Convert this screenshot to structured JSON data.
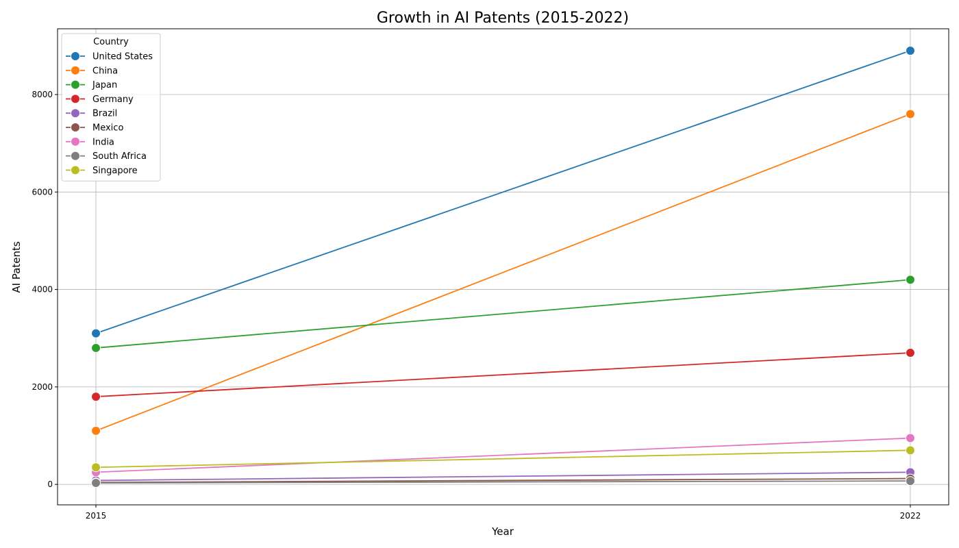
{
  "chart_data": {
    "type": "line",
    "title": "Growth in AI Patents (2015-2022)",
    "xlabel": "Year",
    "ylabel": "AI Patents",
    "x": [
      "2015",
      "2022"
    ],
    "xlim": [
      2014.67,
      2022.33
    ],
    "ylim": [
      -420,
      9350
    ],
    "yticks": [
      0,
      2000,
      4000,
      6000,
      8000
    ],
    "grid": true,
    "legend": {
      "title": "Country",
      "position": "top-left"
    },
    "series": [
      {
        "name": "United States",
        "color": "#1f77b4",
        "values": [
          3100,
          8900
        ]
      },
      {
        "name": "China",
        "color": "#ff7f0e",
        "values": [
          1100,
          7600
        ]
      },
      {
        "name": "Japan",
        "color": "#2ca02c",
        "values": [
          2800,
          4200
        ]
      },
      {
        "name": "Germany",
        "color": "#d62728",
        "values": [
          1800,
          2700
        ]
      },
      {
        "name": "Brazil",
        "color": "#9467bd",
        "values": [
          80,
          250
        ]
      },
      {
        "name": "Mexico",
        "color": "#8c564b",
        "values": [
          40,
          120
        ]
      },
      {
        "name": "India",
        "color": "#e377c2",
        "values": [
          250,
          950
        ]
      },
      {
        "name": "South Africa",
        "color": "#7f7f7f",
        "values": [
          30,
          70
        ]
      },
      {
        "name": "Singapore",
        "color": "#bcbd22",
        "values": [
          350,
          700
        ]
      }
    ]
  }
}
